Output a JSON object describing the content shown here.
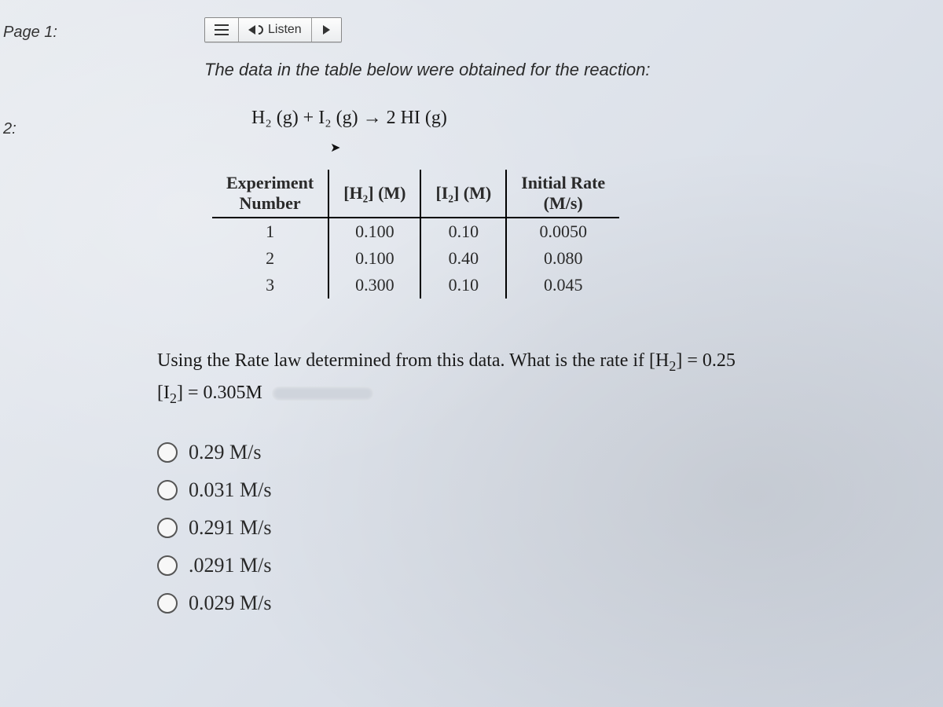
{
  "nav": {
    "page1": "Page 1:",
    "page2": "2:"
  },
  "toolbar": {
    "listen": "Listen"
  },
  "intro": "The data in the table below were obtained for the reaction:",
  "equation": {
    "text": "H₂ (g) + I₂ (g)  →  2 HI (g)"
  },
  "table": {
    "columns": [
      {
        "line1": "Experiment",
        "line2": "Number"
      },
      {
        "line1": "",
        "line2": "[H₂] (M)"
      },
      {
        "line1": "",
        "line2": "[I₂] (M)"
      },
      {
        "line1": "Initial Rate",
        "line2": "(M/s)"
      }
    ],
    "rows": [
      [
        "1",
        "0.100",
        "0.10",
        "0.0050"
      ],
      [
        "2",
        "0.100",
        "0.40",
        "0.080"
      ],
      [
        "3",
        "0.300",
        "0.10",
        "0.045"
      ]
    ]
  },
  "question": {
    "line1_a": "Using the Rate law determined from this data.  What is the rate if [H",
    "line1_b": "] = 0.25",
    "line2_a": "[I",
    "line2_b": "] = 0.305M"
  },
  "options": [
    "0.29 M/s",
    "0.031 M/s",
    "0.291 M/s",
    ".0291 M/s",
    "0.029 M/s"
  ]
}
